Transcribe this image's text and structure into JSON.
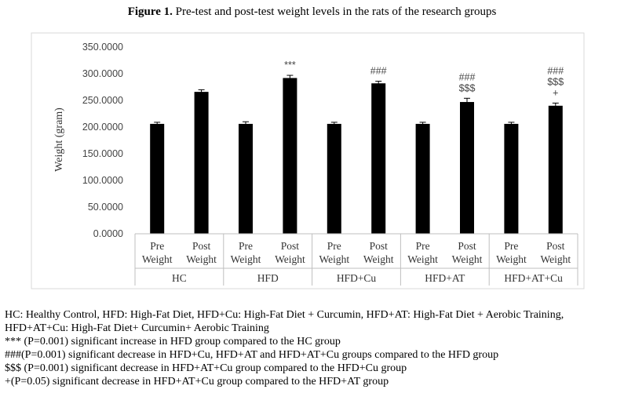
{
  "title": {
    "bold": "Figure 1.",
    "text": " Pre-test and post-test weight levels in the rats of the research groups"
  },
  "chart_data": {
    "type": "bar",
    "ylabel": "Weight (gram)",
    "ylim": [
      0,
      350
    ],
    "yticks": [
      "0.0000",
      "50.0000",
      "100.0000",
      "150.0000",
      "200.0000",
      "250.0000",
      "300.0000",
      "350.0000"
    ],
    "legend": "none",
    "grid": false,
    "bar_color": "#000000",
    "groups": [
      {
        "name": "HC",
        "bars": [
          {
            "line1": "Pre",
            "line2": "Weight",
            "value": 206,
            "error": 3,
            "annotation": []
          },
          {
            "line1": "Post",
            "line2": "Weight",
            "value": 266,
            "error": 4,
            "annotation": []
          }
        ]
      },
      {
        "name": "HFD",
        "bars": [
          {
            "line1": "Pre",
            "line2": "Weight",
            "value": 206,
            "error": 4,
            "annotation": []
          },
          {
            "line1": "Post",
            "line2": "Weight",
            "value": 292,
            "error": 5,
            "annotation": [
              "***"
            ]
          }
        ]
      },
      {
        "name": "HFD+Cu",
        "bars": [
          {
            "line1": "Pre",
            "line2": "Weight",
            "value": 206,
            "error": 3,
            "annotation": []
          },
          {
            "line1": "Post",
            "line2": "Weight",
            "value": 282,
            "error": 4,
            "annotation": [
              "###"
            ]
          }
        ]
      },
      {
        "name": "HFD+AT",
        "bars": [
          {
            "line1": "Pre",
            "line2": "Weight",
            "value": 206,
            "error": 3,
            "annotation": []
          },
          {
            "line1": "Post",
            "line2": "Weight",
            "value": 247,
            "error": 7,
            "annotation": [
              "###",
              "$$$"
            ]
          }
        ]
      },
      {
        "name": "HFD+AT+Cu",
        "bars": [
          {
            "line1": "Pre",
            "line2": "Weight",
            "value": 206,
            "error": 3,
            "annotation": []
          },
          {
            "line1": "Post",
            "line2": "Weight",
            "value": 240,
            "error": 5,
            "annotation": [
              "###",
              "$$$",
              "+"
            ]
          }
        ]
      }
    ]
  },
  "footnotes": [
    "HC: Healthy Control, HFD: High-Fat Diet, HFD+Cu: High-Fat Diet + Curcumin, HFD+AT: High-Fat Diet + Aerobic Training,",
    "HFD+AT+Cu: High-Fat Diet+ Curcumin+ Aerobic Training",
    "*** (P=0.001) significant increase in HFD group compared to the HC group",
    "###(P=0.001) significant decrease in HFD+Cu, HFD+AT and HFD+AT+Cu groups compared to the HFD group",
    "$$$ (P=0.001) significant decrease in HFD+AT+Cu group compared to the HFD+Cu group",
    "+(P=0.05) significant decrease in HFD+AT+Cu group compared to the HFD+AT group"
  ]
}
